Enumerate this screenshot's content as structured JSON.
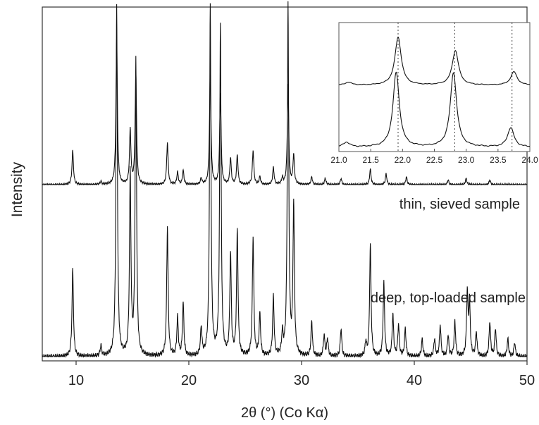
{
  "chart_data": [
    {
      "type": "line",
      "xlabel": "2θ (°) (Co Kα)",
      "ylabel": "Intensity",
      "xlim": [
        7,
        50
      ],
      "xticks": [
        10,
        20,
        30,
        40,
        50
      ],
      "yticks_shown": false,
      "grid": false,
      "series": [
        {
          "name": "thin, sieved sample",
          "baseline_fraction": 0.49,
          "peaks": [
            [
              9.7,
              0.22
            ],
            [
              12.2,
              0.02
            ],
            [
              13.6,
              0.95
            ],
            [
              14.8,
              0.35
            ],
            [
              15.3,
              0.72
            ],
            [
              18.1,
              0.27
            ],
            [
              19.0,
              0.08
            ],
            [
              19.5,
              0.09
            ],
            [
              21.1,
              0.04
            ],
            [
              21.9,
              0.74
            ],
            [
              22.8,
              0.59
            ],
            [
              23.7,
              0.17
            ],
            [
              24.3,
              0.19
            ],
            [
              25.7,
              0.22
            ],
            [
              26.3,
              0.05
            ],
            [
              27.5,
              0.11
            ],
            [
              28.3,
              0.04
            ],
            [
              28.8,
              0.64
            ],
            [
              29.3,
              0.19
            ],
            [
              30.9,
              0.05
            ],
            [
              32.1,
              0.04
            ],
            [
              33.5,
              0.04
            ],
            [
              36.1,
              0.1
            ],
            [
              37.5,
              0.07
            ],
            [
              39.3,
              0.05
            ],
            [
              43.0,
              0.03
            ],
            [
              44.6,
              0.04
            ],
            [
              46.7,
              0.03
            ]
          ]
        },
        {
          "name": "deep, top-loaded sample",
          "baseline_fraction": 0.0,
          "peaks": [
            [
              9.7,
              0.25
            ],
            [
              12.2,
              0.03
            ],
            [
              13.6,
              1.0
            ],
            [
              14.8,
              0.52
            ],
            [
              15.3,
              0.84
            ],
            [
              18.1,
              0.37
            ],
            [
              19.0,
              0.11
            ],
            [
              19.5,
              0.15
            ],
            [
              21.1,
              0.08
            ],
            [
              21.9,
              1.0
            ],
            [
              22.8,
              0.95
            ],
            [
              23.7,
              0.29
            ],
            [
              24.3,
              0.36
            ],
            [
              25.7,
              0.34
            ],
            [
              26.3,
              0.12
            ],
            [
              27.5,
              0.17
            ],
            [
              28.3,
              0.06
            ],
            [
              28.8,
              1.0
            ],
            [
              29.3,
              0.43
            ],
            [
              30.9,
              0.1
            ],
            [
              32.0,
              0.06
            ],
            [
              32.3,
              0.05
            ],
            [
              33.5,
              0.08
            ],
            [
              35.7,
              0.04
            ],
            [
              36.1,
              0.32
            ],
            [
              37.3,
              0.21
            ],
            [
              38.1,
              0.12
            ],
            [
              38.6,
              0.09
            ],
            [
              39.2,
              0.08
            ],
            [
              40.7,
              0.05
            ],
            [
              41.8,
              0.05
            ],
            [
              42.3,
              0.09
            ],
            [
              43.0,
              0.06
            ],
            [
              43.6,
              0.1
            ],
            [
              44.7,
              0.18
            ],
            [
              44.9,
              0.15
            ],
            [
              45.5,
              0.07
            ],
            [
              46.7,
              0.1
            ],
            [
              47.2,
              0.08
            ],
            [
              48.3,
              0.05
            ],
            [
              48.9,
              0.04
            ]
          ]
        }
      ],
      "annotations": [
        "thin, sieved sample",
        "deep, top-loaded sample"
      ]
    },
    {
      "type": "line",
      "role": "inset",
      "xlim": [
        21.0,
        24.0
      ],
      "xticks": [
        "21.0",
        "21.5",
        "22.0",
        "22.5",
        "23.0",
        "23.5",
        "24.0"
      ],
      "reference_lines_x": [
        21.93,
        22.82,
        23.72
      ],
      "series": [
        {
          "name": "thin, sieved sample",
          "peaks": [
            [
              21.15,
              0.06
            ],
            [
              21.93,
              1.0
            ],
            [
              22.83,
              0.72
            ],
            [
              23.75,
              0.28
            ]
          ]
        },
        {
          "name": "deep, top-loaded sample",
          "peaks": [
            [
              21.12,
              0.06
            ],
            [
              21.9,
              0.92
            ],
            [
              22.8,
              0.92
            ],
            [
              23.7,
              0.24
            ]
          ]
        }
      ]
    }
  ]
}
